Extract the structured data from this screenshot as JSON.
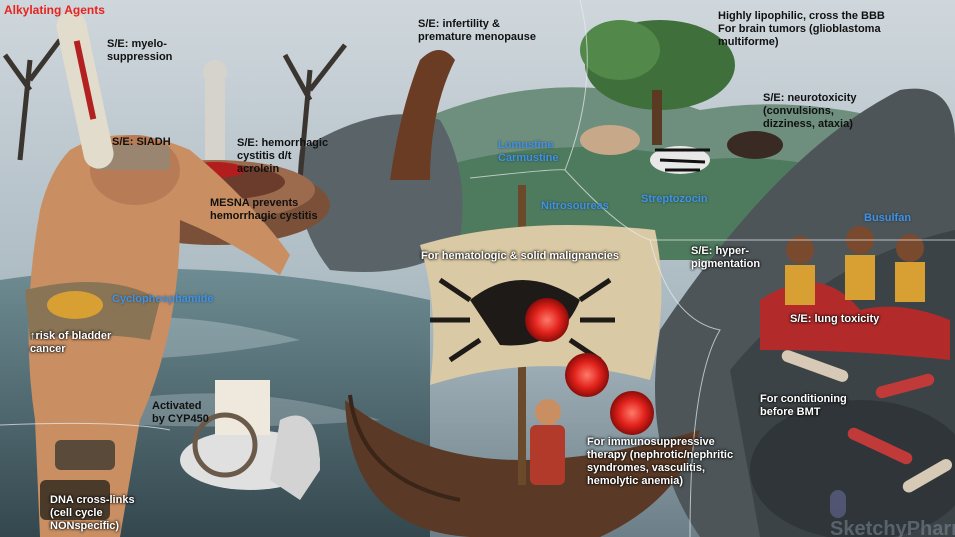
{
  "title": "Alkylating Agents",
  "labels": {
    "myelo": "S/E: myelo-\nsuppression",
    "siadh": "S/E: SIADH",
    "hemorrhagic": "S/E: hemorrhagic\ncystitis d/t\nacrolein",
    "mesna": "MESNA prevents\nhemorrhagic cystitis",
    "cyclophosphamide": "Cyclophosphamide",
    "bladder": "↑risk of bladder\ncancer",
    "cyp450": "Activated\nby CYP450",
    "dna": "DNA cross-links\n(cell cycle\nNONspecific)",
    "infertility": "S/E: infertility &\npremature menopause",
    "lipophilic": "Highly lipophilic, cross the BBB\nFor brain tumors (glioblastoma\nmultiforme)",
    "neurotoxicity": "S/E: neurotoxicity\n(convulsions,\ndizziness, ataxia)",
    "lomustine": "Lomustine\nCarmustine",
    "nitrosoureas": "Nitrosoureas",
    "streptozocin": "Streptozocin",
    "busulfan": "Busulfan",
    "hyperpigmentation": "S/E: hyper-\npigmentation",
    "lung": "S/E: lung toxicity",
    "hematologic": "For hematologic & solid malignancies",
    "conditioning": "For conditioning\nbefore BMT",
    "immunosuppressive": "For immunosuppressive\ntherapy (nephrotic/nephritic\nsyndromes, vasculitis,\nhemolytic anemia)"
  },
  "logo_text": "SketchyPharm",
  "colors": {
    "title_red": "#e8231d",
    "drug_blue": "#3e93e6"
  }
}
